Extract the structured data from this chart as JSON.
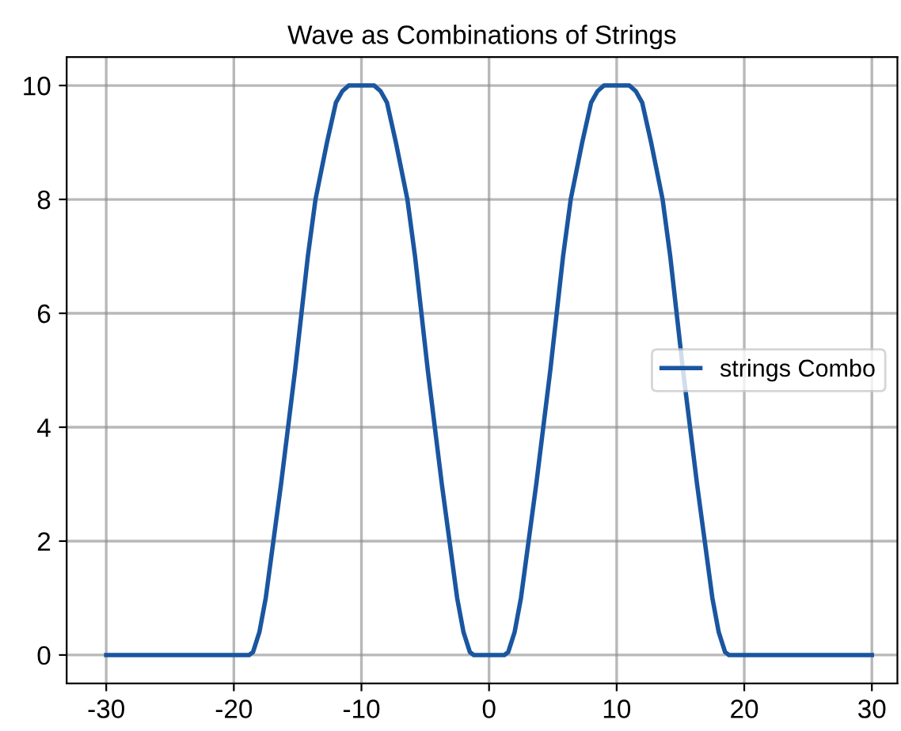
{
  "chart_data": {
    "type": "line",
    "title": "Wave as Combinations of Strings",
    "x": [
      -30,
      -18.8,
      -18.5,
      -18,
      -17.5,
      -16.9,
      -16.3,
      -15.75,
      -15.2,
      -14.7,
      -14.2,
      -13.6,
      -12.7,
      -12,
      -11.5,
      -11,
      -9,
      -8.5,
      -8,
      -7.3,
      -6.4,
      -5.8,
      -5.3,
      -4.8,
      -4.25,
      -3.7,
      -3.1,
      -2.5,
      -2,
      -1.5,
      -1.2,
      1.2,
      1.5,
      2,
      2.5,
      3.1,
      3.7,
      4.25,
      4.8,
      5.3,
      5.8,
      6.4,
      7.3,
      8,
      8.5,
      9,
      11,
      11.5,
      12,
      12.7,
      13.6,
      14.2,
      14.7,
      15.2,
      15.75,
      16.3,
      16.9,
      17.5,
      18,
      18.5,
      18.8,
      30
    ],
    "series": [
      {
        "name": "strings Combo",
        "color": "#1a56a0",
        "values": [
          0,
          0,
          0.05,
          0.4,
          1,
          2,
          3,
          4,
          5,
          6,
          7,
          8,
          9,
          9.7,
          9.9,
          10,
          10,
          9.9,
          9.7,
          9,
          8,
          7,
          6,
          5,
          4,
          3,
          2,
          1,
          0.4,
          0.05,
          0,
          0,
          0.05,
          0.4,
          1,
          2,
          3,
          4,
          5,
          6,
          7,
          8,
          9,
          9.7,
          9.9,
          10,
          10,
          9.9,
          9.7,
          9,
          8,
          7,
          6,
          5,
          4,
          3,
          2,
          1,
          0.4,
          0.05,
          0,
          0
        ]
      }
    ],
    "xlim": [
      -33.1,
      32
    ],
    "ylim": [
      -0.5,
      10.5
    ],
    "xticks": [
      -30,
      -20,
      -10,
      0,
      10,
      20,
      30
    ],
    "yticks": [
      0,
      2,
      4,
      6,
      8,
      10
    ],
    "grid": true,
    "legend": "center right",
    "marker": "none",
    "line_style": "solid"
  }
}
